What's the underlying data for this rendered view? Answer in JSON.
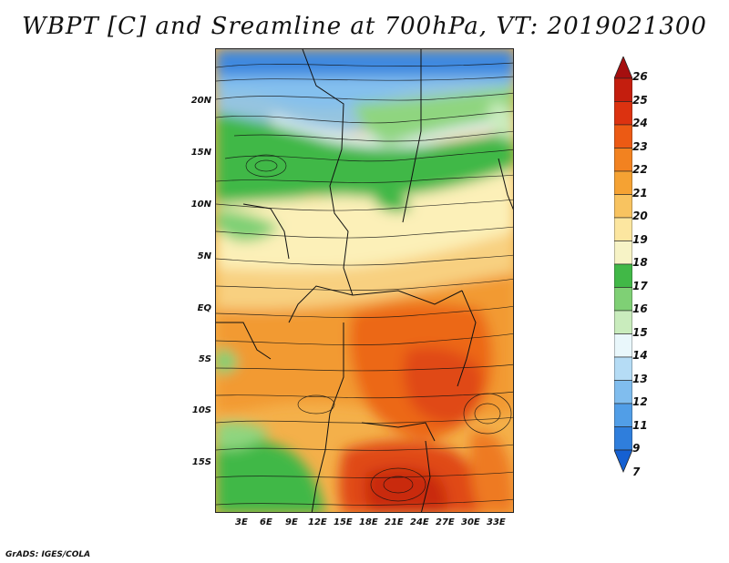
{
  "title": "WBPT [C] and Sreamline at 700hPa, VT: 2019021300",
  "credit": "GrADS: IGES/COLA",
  "lat_labels": [
    "20N",
    "15N",
    "10N",
    "5N",
    "EQ",
    "5S",
    "10S",
    "15S"
  ],
  "lon_labels": [
    "3E",
    "6E",
    "9E",
    "12E",
    "15E",
    "18E",
    "21E",
    "24E",
    "27E",
    "30E",
    "33E"
  ],
  "colorbar": {
    "labels": [
      "26",
      "25",
      "24",
      "23",
      "22",
      "21",
      "20",
      "19",
      "18",
      "17",
      "16",
      "15",
      "14",
      "13",
      "12",
      "11",
      "9",
      "7"
    ],
    "colors": [
      "#a50f0f",
      "#c41e0e",
      "#dc3210",
      "#ec5a14",
      "#f28220",
      "#f5a233",
      "#f8c360",
      "#fce6a0",
      "#f7f3c6",
      "#41b847",
      "#7fd075",
      "#c9ecbd",
      "#e9f7fb",
      "#b5dcf5",
      "#80bdee",
      "#519ee7",
      "#2f7edc",
      "#1560d2"
    ]
  },
  "map_fill_colors": {
    "deep_blue": "#3d88e0",
    "blue": "#6db0ec",
    "light_blue": "#bfe1f4",
    "pale": "#eef8fb",
    "green": "#41b847",
    "light_green": "#8fd57f",
    "cream": "#fcf0b8",
    "yellow": "#f9d88a",
    "orange_light": "#f6b454",
    "orange": "#f29a32",
    "orange_deep": "#ee7a22",
    "red_orange": "#e85a16",
    "red": "#d8380f"
  }
}
